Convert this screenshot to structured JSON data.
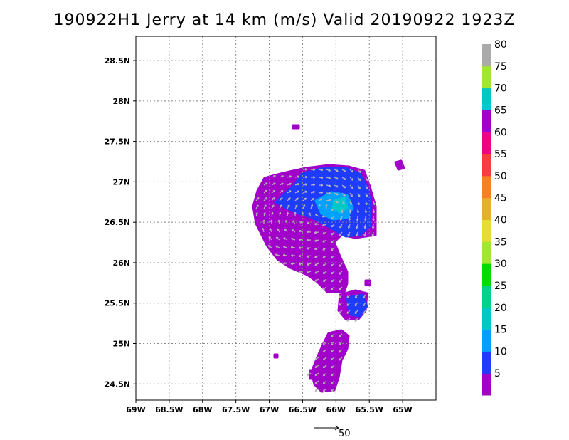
{
  "title": "190922H1 Jerry at 14 km (m/s) Valid 20190922 1923Z",
  "map": {
    "lon_range": [
      -69.0,
      -64.5
    ],
    "lat_range": [
      24.3,
      28.8
    ],
    "lat_ticks": [
      {
        "value": 28.5,
        "label": "28.5N"
      },
      {
        "value": 28.0,
        "label": "28N"
      },
      {
        "value": 27.5,
        "label": "27.5N"
      },
      {
        "value": 27.0,
        "label": "27N"
      },
      {
        "value": 26.5,
        "label": "26.5N"
      },
      {
        "value": 26.0,
        "label": "26N"
      },
      {
        "value": 25.5,
        "label": "25.5N"
      },
      {
        "value": 25.0,
        "label": "25N"
      },
      {
        "value": 24.5,
        "label": "24.5N"
      }
    ],
    "lon_ticks": [
      {
        "value": -69.0,
        "label": "69W"
      },
      {
        "value": -68.5,
        "label": "68.5W"
      },
      {
        "value": -68.0,
        "label": "68W"
      },
      {
        "value": -67.5,
        "label": "67.5W"
      },
      {
        "value": -67.0,
        "label": "67W"
      },
      {
        "value": -66.5,
        "label": "66.5W"
      },
      {
        "value": -66.0,
        "label": "66W"
      },
      {
        "value": -65.5,
        "label": "65.5W"
      },
      {
        "value": -65.0,
        "label": "65W"
      }
    ],
    "grid": "dotted"
  },
  "colorbar": {
    "levels": [
      "5",
      "10",
      "15",
      "20",
      "25",
      "30",
      "35",
      "40",
      "45",
      "50",
      "55",
      "60",
      "65",
      "70",
      "75",
      "80"
    ],
    "colors": [
      "#a000c8",
      "#1e3cff",
      "#00a0ff",
      "#00c8c8",
      "#00d28c",
      "#00dc00",
      "#a0e632",
      "#e6dc32",
      "#e6af2d",
      "#f08228",
      "#fa3c3c",
      "#f00082",
      "#a000c8",
      "#00c8c8",
      "#a0e632",
      "#aaaaaa"
    ]
  },
  "reference_vector": {
    "label": "50"
  },
  "colors": {
    "purple": "#a000c8",
    "blue": "#1e3cff",
    "light_blue": "#00a0ff",
    "cyan": "#00c8c8",
    "arrow_gray": "#b4b4b4"
  }
}
